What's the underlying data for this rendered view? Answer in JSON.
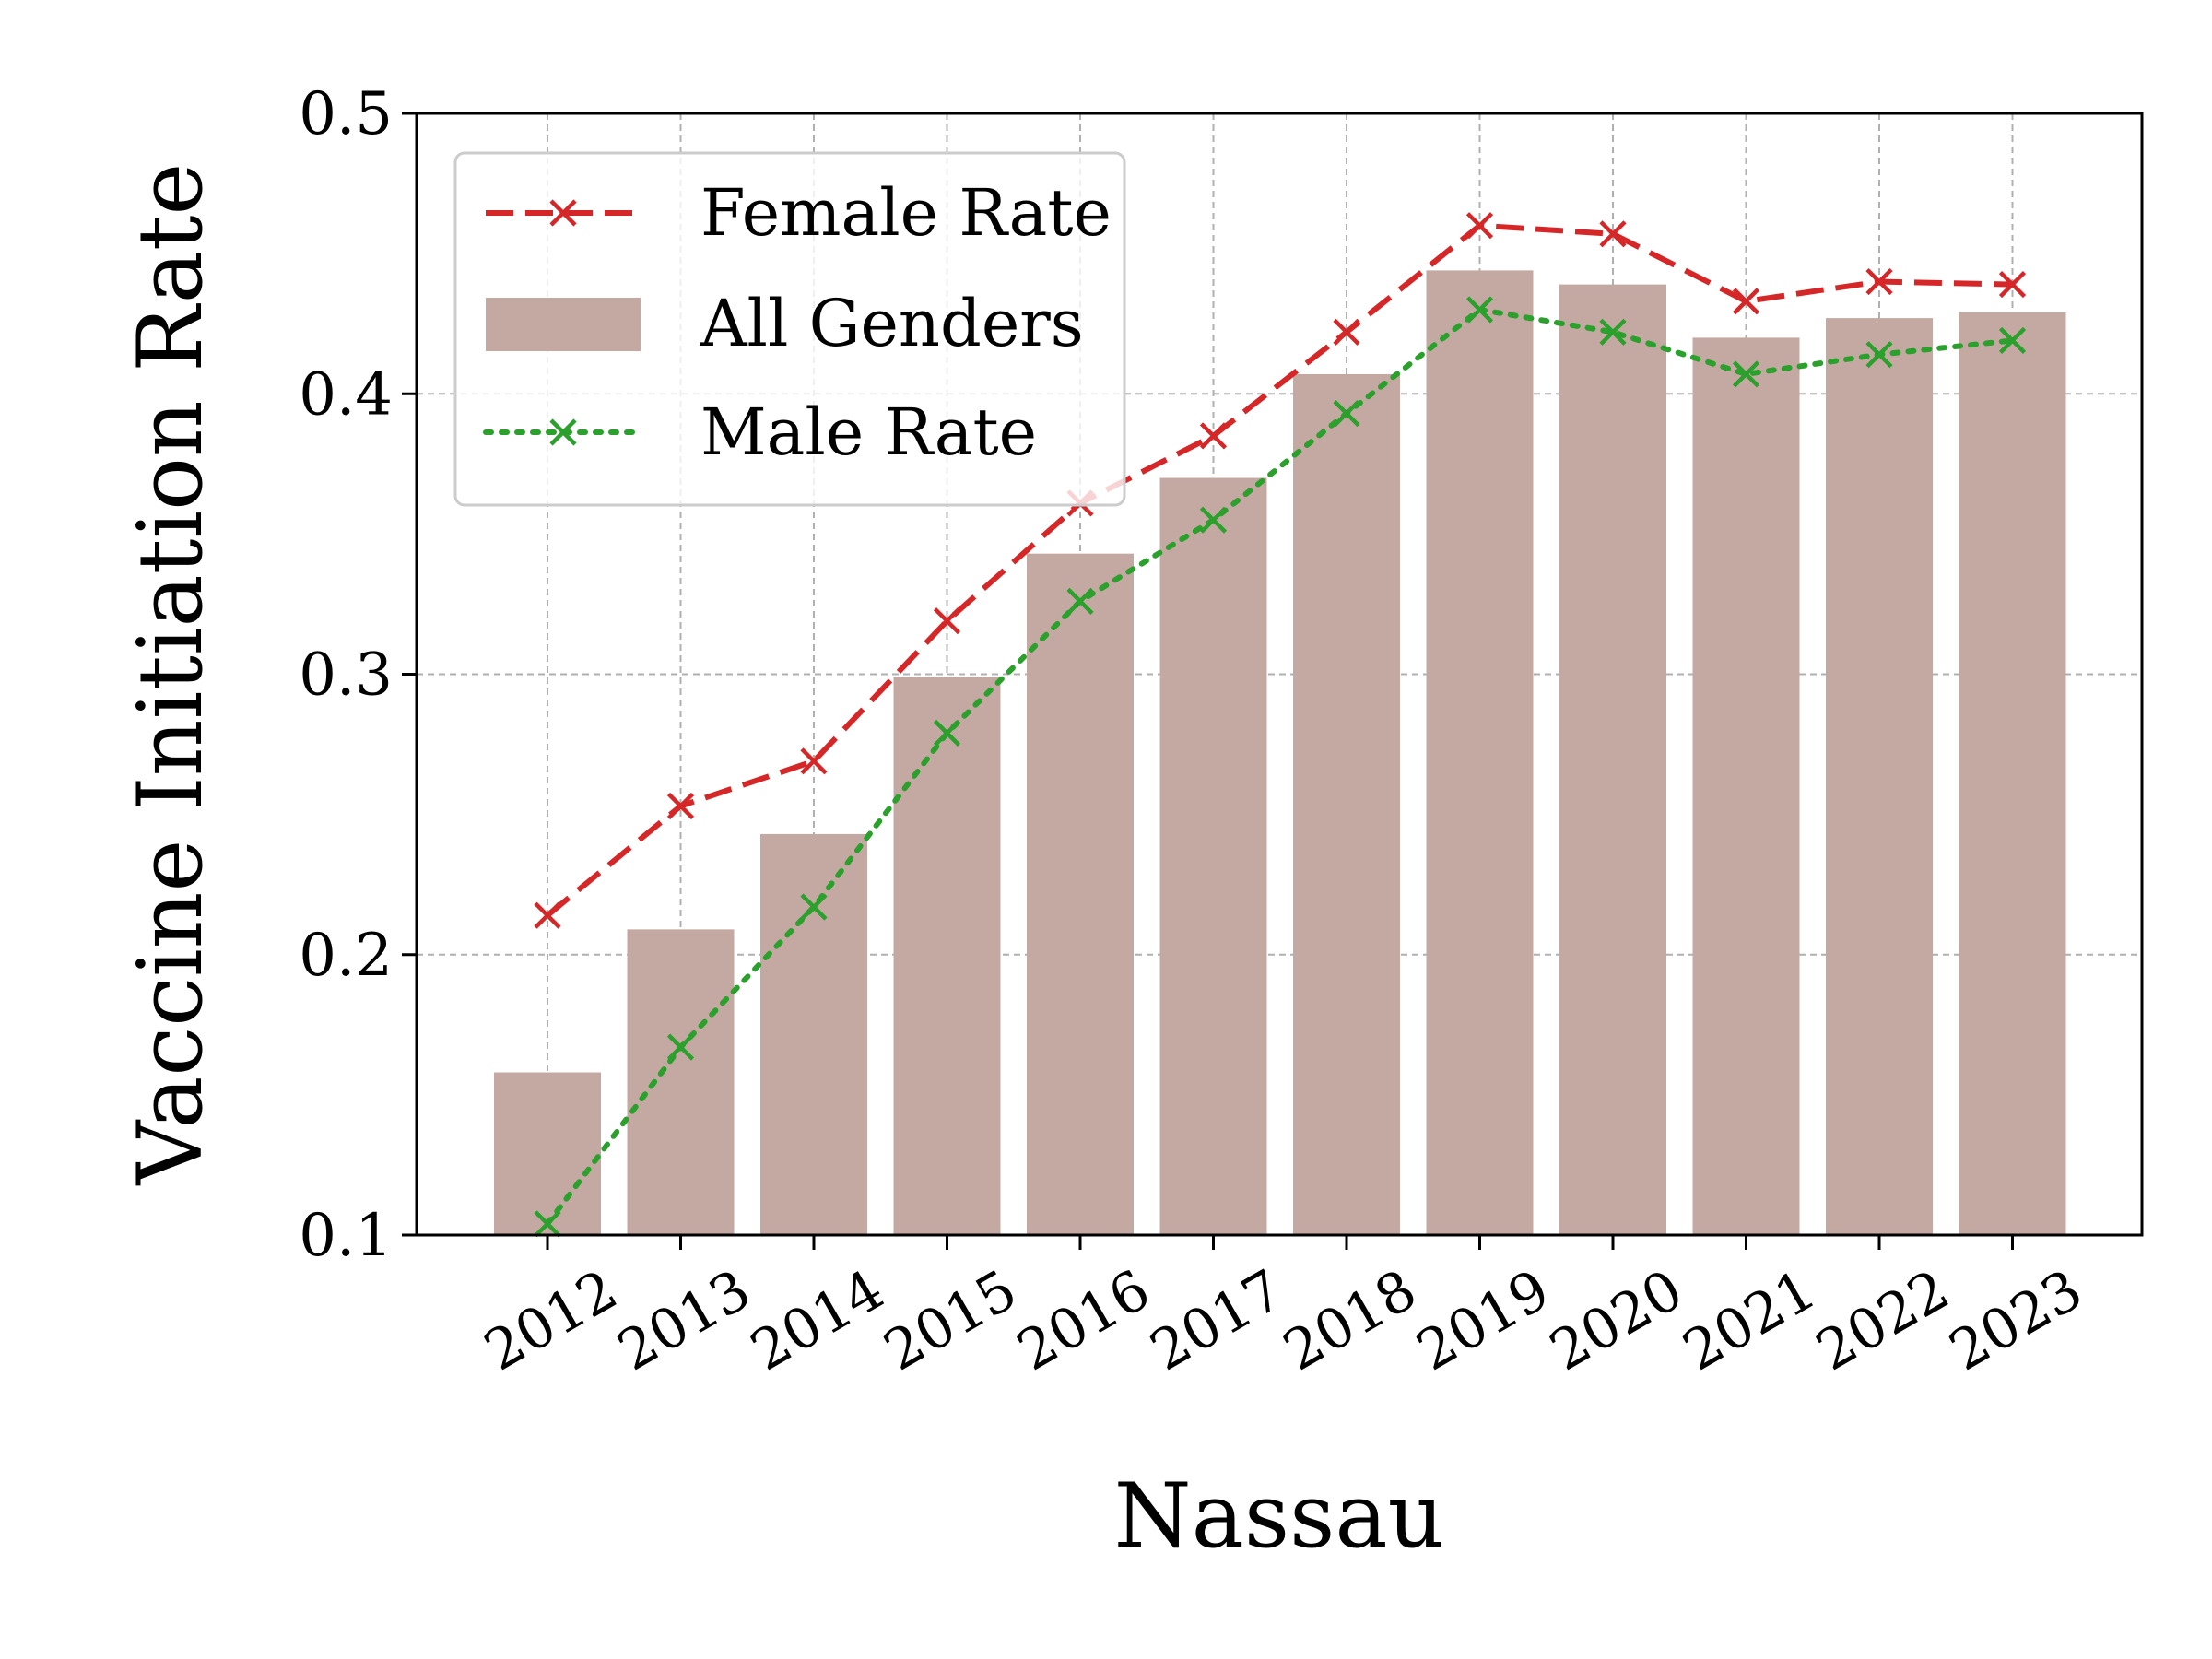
{
  "chart_data": {
    "type": "bar",
    "title": "",
    "xlabel": "Nassau",
    "ylabel": "Vaccine Initiation Rate",
    "categories": [
      "2012",
      "2013",
      "2014",
      "2015",
      "2016",
      "2017",
      "2018",
      "2019",
      "2020",
      "2021",
      "2022",
      "2023"
    ],
    "ylim": [
      0.1,
      0.5
    ],
    "yticks": [
      "0.1",
      "0.2",
      "0.3",
      "0.4",
      "0.5"
    ],
    "grid": true,
    "legend_position": "top-left",
    "series": [
      {
        "name": "Female Rate",
        "kind": "line",
        "line_style": "dashed",
        "marker": "x",
        "color": "#d62728",
        "values": [
          0.214,
          0.253,
          0.269,
          0.319,
          0.361,
          0.385,
          0.422,
          0.46,
          0.457,
          0.433,
          0.44,
          0.439
        ]
      },
      {
        "name": "All Genders",
        "kind": "bar",
        "color": "#c4a9a2",
        "values": [
          0.158,
          0.209,
          0.243,
          0.299,
          0.343,
          0.37,
          0.407,
          0.444,
          0.439,
          0.42,
          0.427,
          0.429
        ]
      },
      {
        "name": "Male Rate",
        "kind": "line",
        "line_style": "dotted",
        "marker": "x",
        "color": "#2ca02c",
        "values": [
          0.104,
          0.167,
          0.217,
          0.279,
          0.326,
          0.355,
          0.393,
          0.43,
          0.422,
          0.407,
          0.414,
          0.419
        ]
      }
    ]
  }
}
